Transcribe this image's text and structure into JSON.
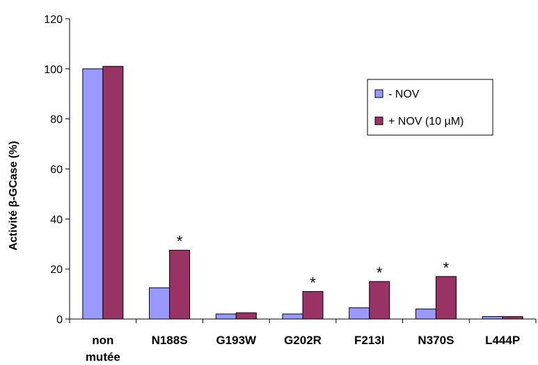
{
  "chart_data": {
    "type": "bar",
    "categories": [
      "non\nmutée",
      "N188S",
      "G193W",
      "G202R",
      "F213I",
      "N370S",
      "L444P"
    ],
    "series": [
      {
        "name": "- NOV",
        "color": "#9999ff",
        "values": [
          100,
          12.5,
          2,
          2,
          4.5,
          4,
          1
        ]
      },
      {
        "name": "+ NOV (10 µM)",
        "color": "#993366",
        "values": [
          101,
          27.5,
          2.5,
          11,
          15,
          17,
          1
        ]
      }
    ],
    "significance_marker": "*",
    "significant": [
      {
        "category_index": 1,
        "series_index": 1
      },
      {
        "category_index": 3,
        "series_index": 1
      },
      {
        "category_index": 4,
        "series_index": 1
      },
      {
        "category_index": 5,
        "series_index": 1
      }
    ],
    "ylabel": "Activité β-GCase (%)",
    "ylim": [
      0,
      120
    ],
    "yticks": [
      0,
      20,
      40,
      60,
      80,
      100,
      120
    ],
    "grid": false,
    "legend_position": "right"
  }
}
